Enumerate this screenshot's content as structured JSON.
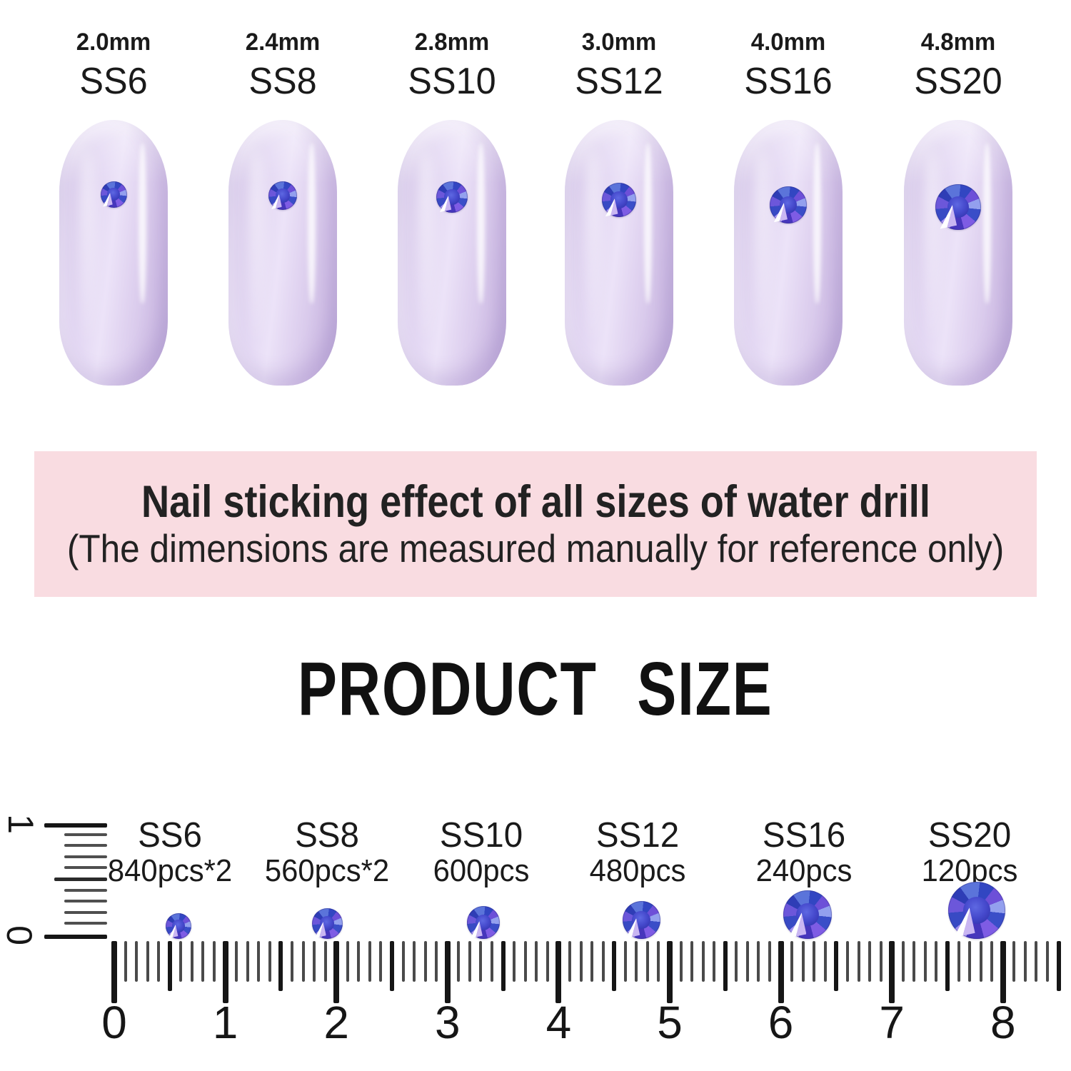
{
  "top_section": {
    "nails": [
      {
        "mm": "2.0mm",
        "ss": "SS6"
      },
      {
        "mm": "2.4mm",
        "ss": "SS8"
      },
      {
        "mm": "2.8mm",
        "ss": "SS10"
      },
      {
        "mm": "3.0mm",
        "ss": "SS12"
      },
      {
        "mm": "4.0mm",
        "ss": "SS16"
      },
      {
        "mm": "4.8mm",
        "ss": "SS20"
      }
    ]
  },
  "banner": {
    "line1": "Nail sticking effect of all sizes of water drill",
    "line2": "(The dimensions are measured manually for reference only)",
    "bg": "#f9dce1"
  },
  "heading": {
    "text": "PRODUCT SIZE"
  },
  "size_chart": {
    "items": [
      {
        "ss": "SS6",
        "qty": "840pcs*2"
      },
      {
        "ss": "SS8",
        "qty": "560pcs*2"
      },
      {
        "ss": "SS10",
        "qty": "600pcs"
      },
      {
        "ss": "SS12",
        "qty": "480pcs"
      },
      {
        "ss": "SS16",
        "qty": "240pcs"
      },
      {
        "ss": "SS20",
        "qty": "120pcs"
      }
    ],
    "ruler": {
      "cm_labels": [
        "0",
        "1",
        "2",
        "3",
        "4",
        "5",
        "6",
        "7",
        "8"
      ],
      "vertical_top_label": "1",
      "vertical_bottom_label": "0"
    }
  },
  "colors": {
    "banner_bg": "#f9dce1",
    "nail_lavender": "#ddcfef",
    "stone_blue": "#3a4ec8",
    "stone_violet": "#7e5ce4",
    "stone_highlight": "#ffffff",
    "text": "#1a1a1a",
    "tick_minor": "#4f4f4f",
    "tick_major": "#161616"
  }
}
